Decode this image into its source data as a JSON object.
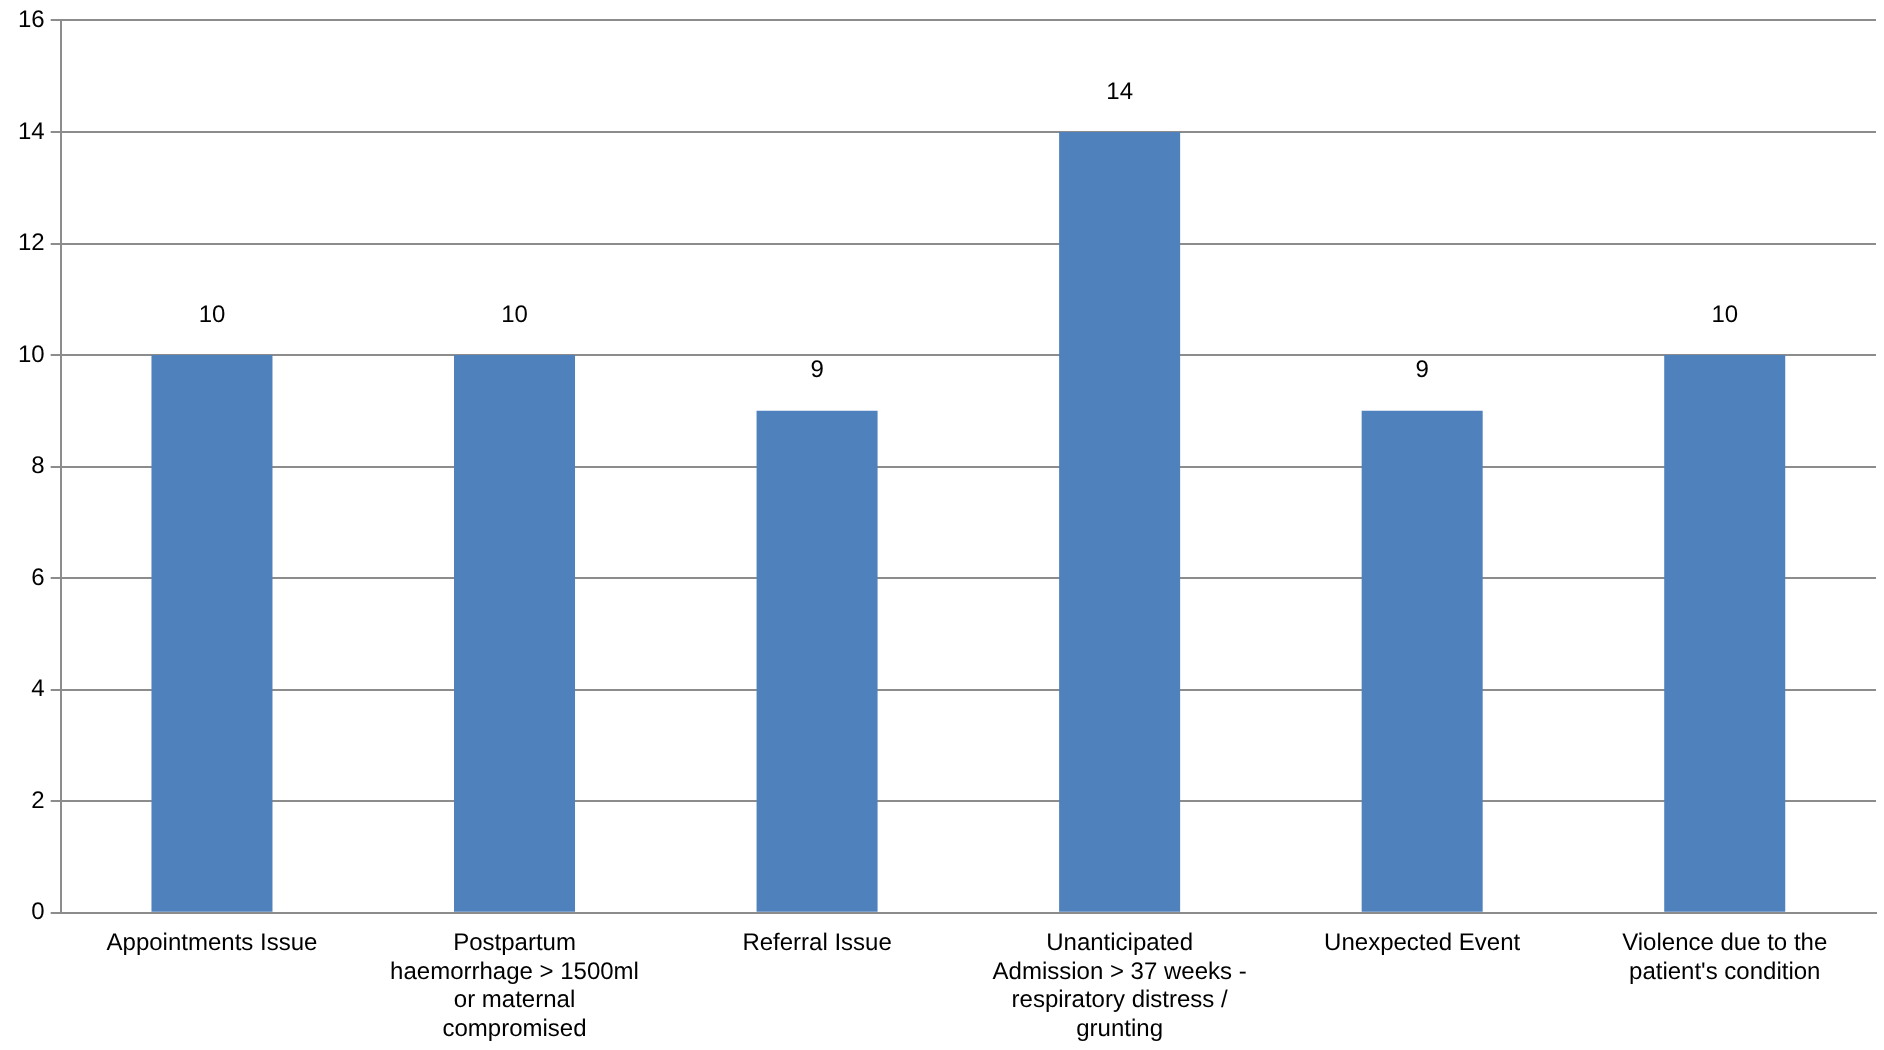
{
  "chart_data": {
    "type": "bar",
    "categories": [
      "Appointments Issue",
      "Postpartum haemorrhage > 1500ml or maternal compromised",
      "Referral Issue",
      "Unanticipated Admission > 37 weeks - respiratory distress / grunting",
      "Unexpected Event",
      "Violence due to the patient's condition"
    ],
    "values": [
      10,
      10,
      9,
      14,
      9,
      10
    ],
    "color": "#4f81bd",
    "ylim": [
      0,
      16
    ],
    "yticks": [
      0,
      2,
      4,
      6,
      8,
      10,
      12,
      14,
      16
    ],
    "grid": "y",
    "data_labels": true,
    "legend": false
  }
}
